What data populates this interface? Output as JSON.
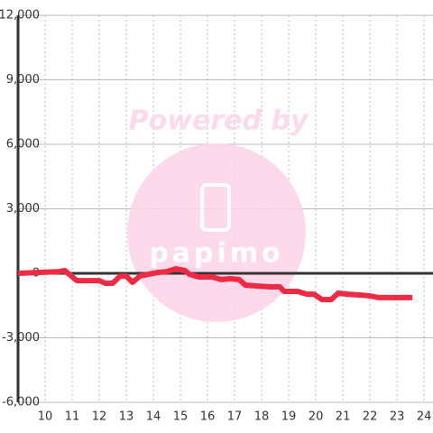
{
  "chart_data": {
    "type": "line",
    "watermark": "Powered by",
    "watermark_logo": "papimo",
    "x": [
      9,
      10.5,
      10.73,
      11.17,
      12,
      12.23,
      12.5,
      12.77,
      13,
      13.23,
      13.5,
      13.83,
      14.17,
      14.5,
      14.83,
      15.17,
      15.33,
      15.67,
      16.17,
      16.5,
      16.83,
      17.17,
      17.4,
      17.83,
      18.33,
      18.67,
      18.83,
      19.33,
      19.67,
      19.93,
      20.23,
      20.57,
      20.83,
      21.17,
      21.67,
      22,
      22.33,
      23,
      23.57
    ],
    "series": [
      {
        "color": "#ee2a44",
        "values": [
          0,
          80,
          130,
          -340,
          -340,
          -460,
          -460,
          -130,
          -130,
          -420,
          -130,
          -40,
          40,
          80,
          210,
          130,
          -40,
          -170,
          -170,
          -290,
          -250,
          -290,
          -550,
          -590,
          -630,
          -630,
          -840,
          -840,
          -970,
          -970,
          -1220,
          -1220,
          -920,
          -970,
          -1010,
          -1050,
          -1130,
          -1130,
          -1130
        ]
      }
    ],
    "xlim": [
      9,
      24.33
    ],
    "xticks": [
      10,
      11,
      12,
      13,
      14,
      15,
      16,
      17,
      18,
      19,
      20,
      21,
      22,
      23,
      24
    ],
    "ylim": [
      -6000,
      12000
    ],
    "yticks": [
      {
        "value": -6000,
        "label": "-6,000"
      },
      {
        "value": -3000,
        "label": "-3,000"
      },
      0,
      {
        "value": 3000,
        "label": "3,000"
      },
      {
        "value": 6000,
        "label": "6,000"
      },
      {
        "value": 9000,
        "label": "9,000"
      },
      {
        "value": 12000,
        "label": "12,000"
      }
    ],
    "grid": true
  }
}
